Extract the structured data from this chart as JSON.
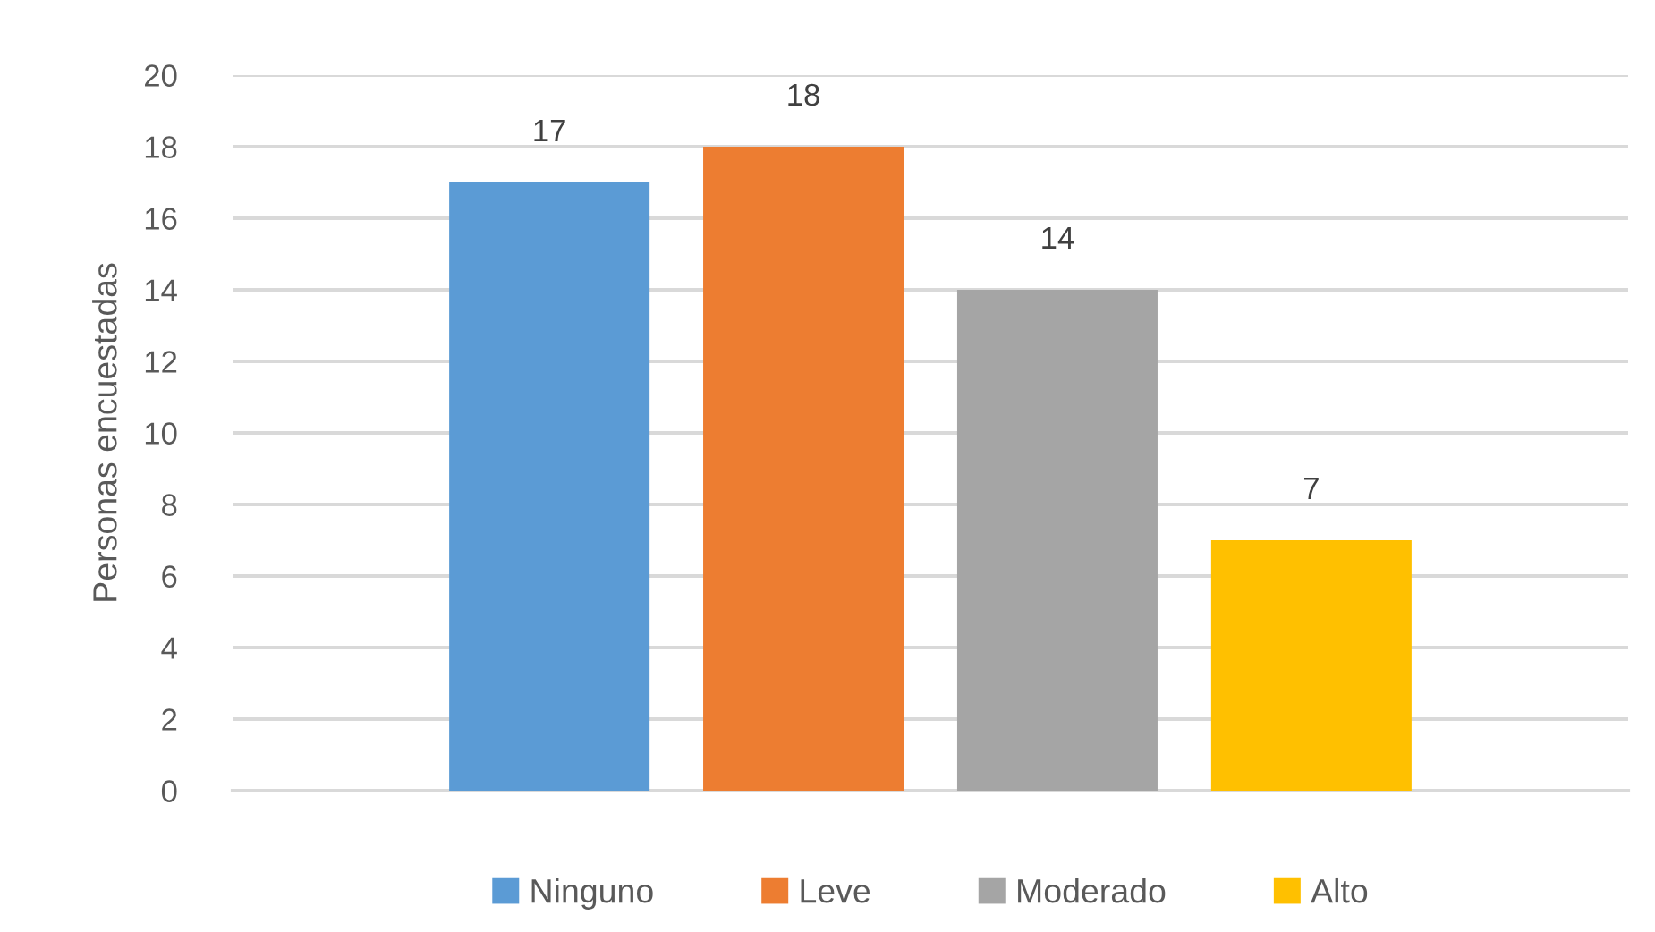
{
  "chart_data": {
    "type": "bar",
    "ylabel": "Personas encuestadas",
    "categories": [
      null
    ],
    "series": [
      {
        "name": "Ninguno",
        "color": "#5b9bd5",
        "values": [
          17
        ]
      },
      {
        "name": "Leve",
        "color": "#ed7d31",
        "values": [
          18
        ]
      },
      {
        "name": "Moderado",
        "color": "#a5a5a5",
        "values": [
          14
        ]
      },
      {
        "name": "Alto",
        "color": "#ffc000",
        "values": [
          7
        ]
      }
    ],
    "ylim": [
      0,
      20
    ],
    "yticks": [
      0,
      2,
      4,
      6,
      8,
      10,
      12,
      14,
      16,
      18,
      20
    ],
    "grid": "y",
    "legend": "bottom",
    "data_labels": true,
    "tick_labels": "y"
  }
}
